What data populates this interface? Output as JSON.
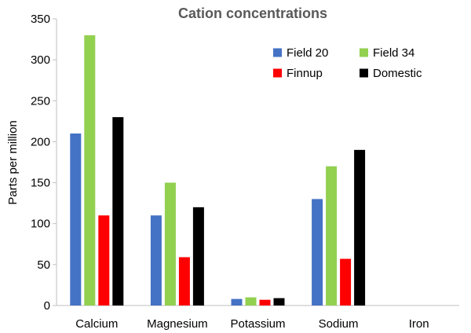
{
  "chart_data": {
    "type": "bar",
    "title": "Cation concentrations",
    "xlabel": "",
    "ylabel": "Parts per million",
    "ylim": [
      0,
      350
    ],
    "yticks": [
      0,
      50,
      100,
      150,
      200,
      250,
      300,
      350
    ],
    "categories": [
      "Calcium",
      "Magnesium",
      "Potassium",
      "Sodium",
      "Iron"
    ],
    "series": [
      {
        "name": "Field 20",
        "color": "#4472C4",
        "values": [
          210,
          110,
          8,
          130,
          0
        ]
      },
      {
        "name": "Field 34",
        "color": "#92D050",
        "values": [
          330,
          150,
          10,
          170,
          0
        ]
      },
      {
        "name": "Finnup",
        "color": "#FF0000",
        "values": [
          110,
          59,
          7,
          57,
          0
        ]
      },
      {
        "name": "Domestic",
        "color": "#000000",
        "values": [
          230,
          120,
          9,
          190,
          0
        ]
      }
    ],
    "grid": false,
    "legend_position": "top-right"
  }
}
